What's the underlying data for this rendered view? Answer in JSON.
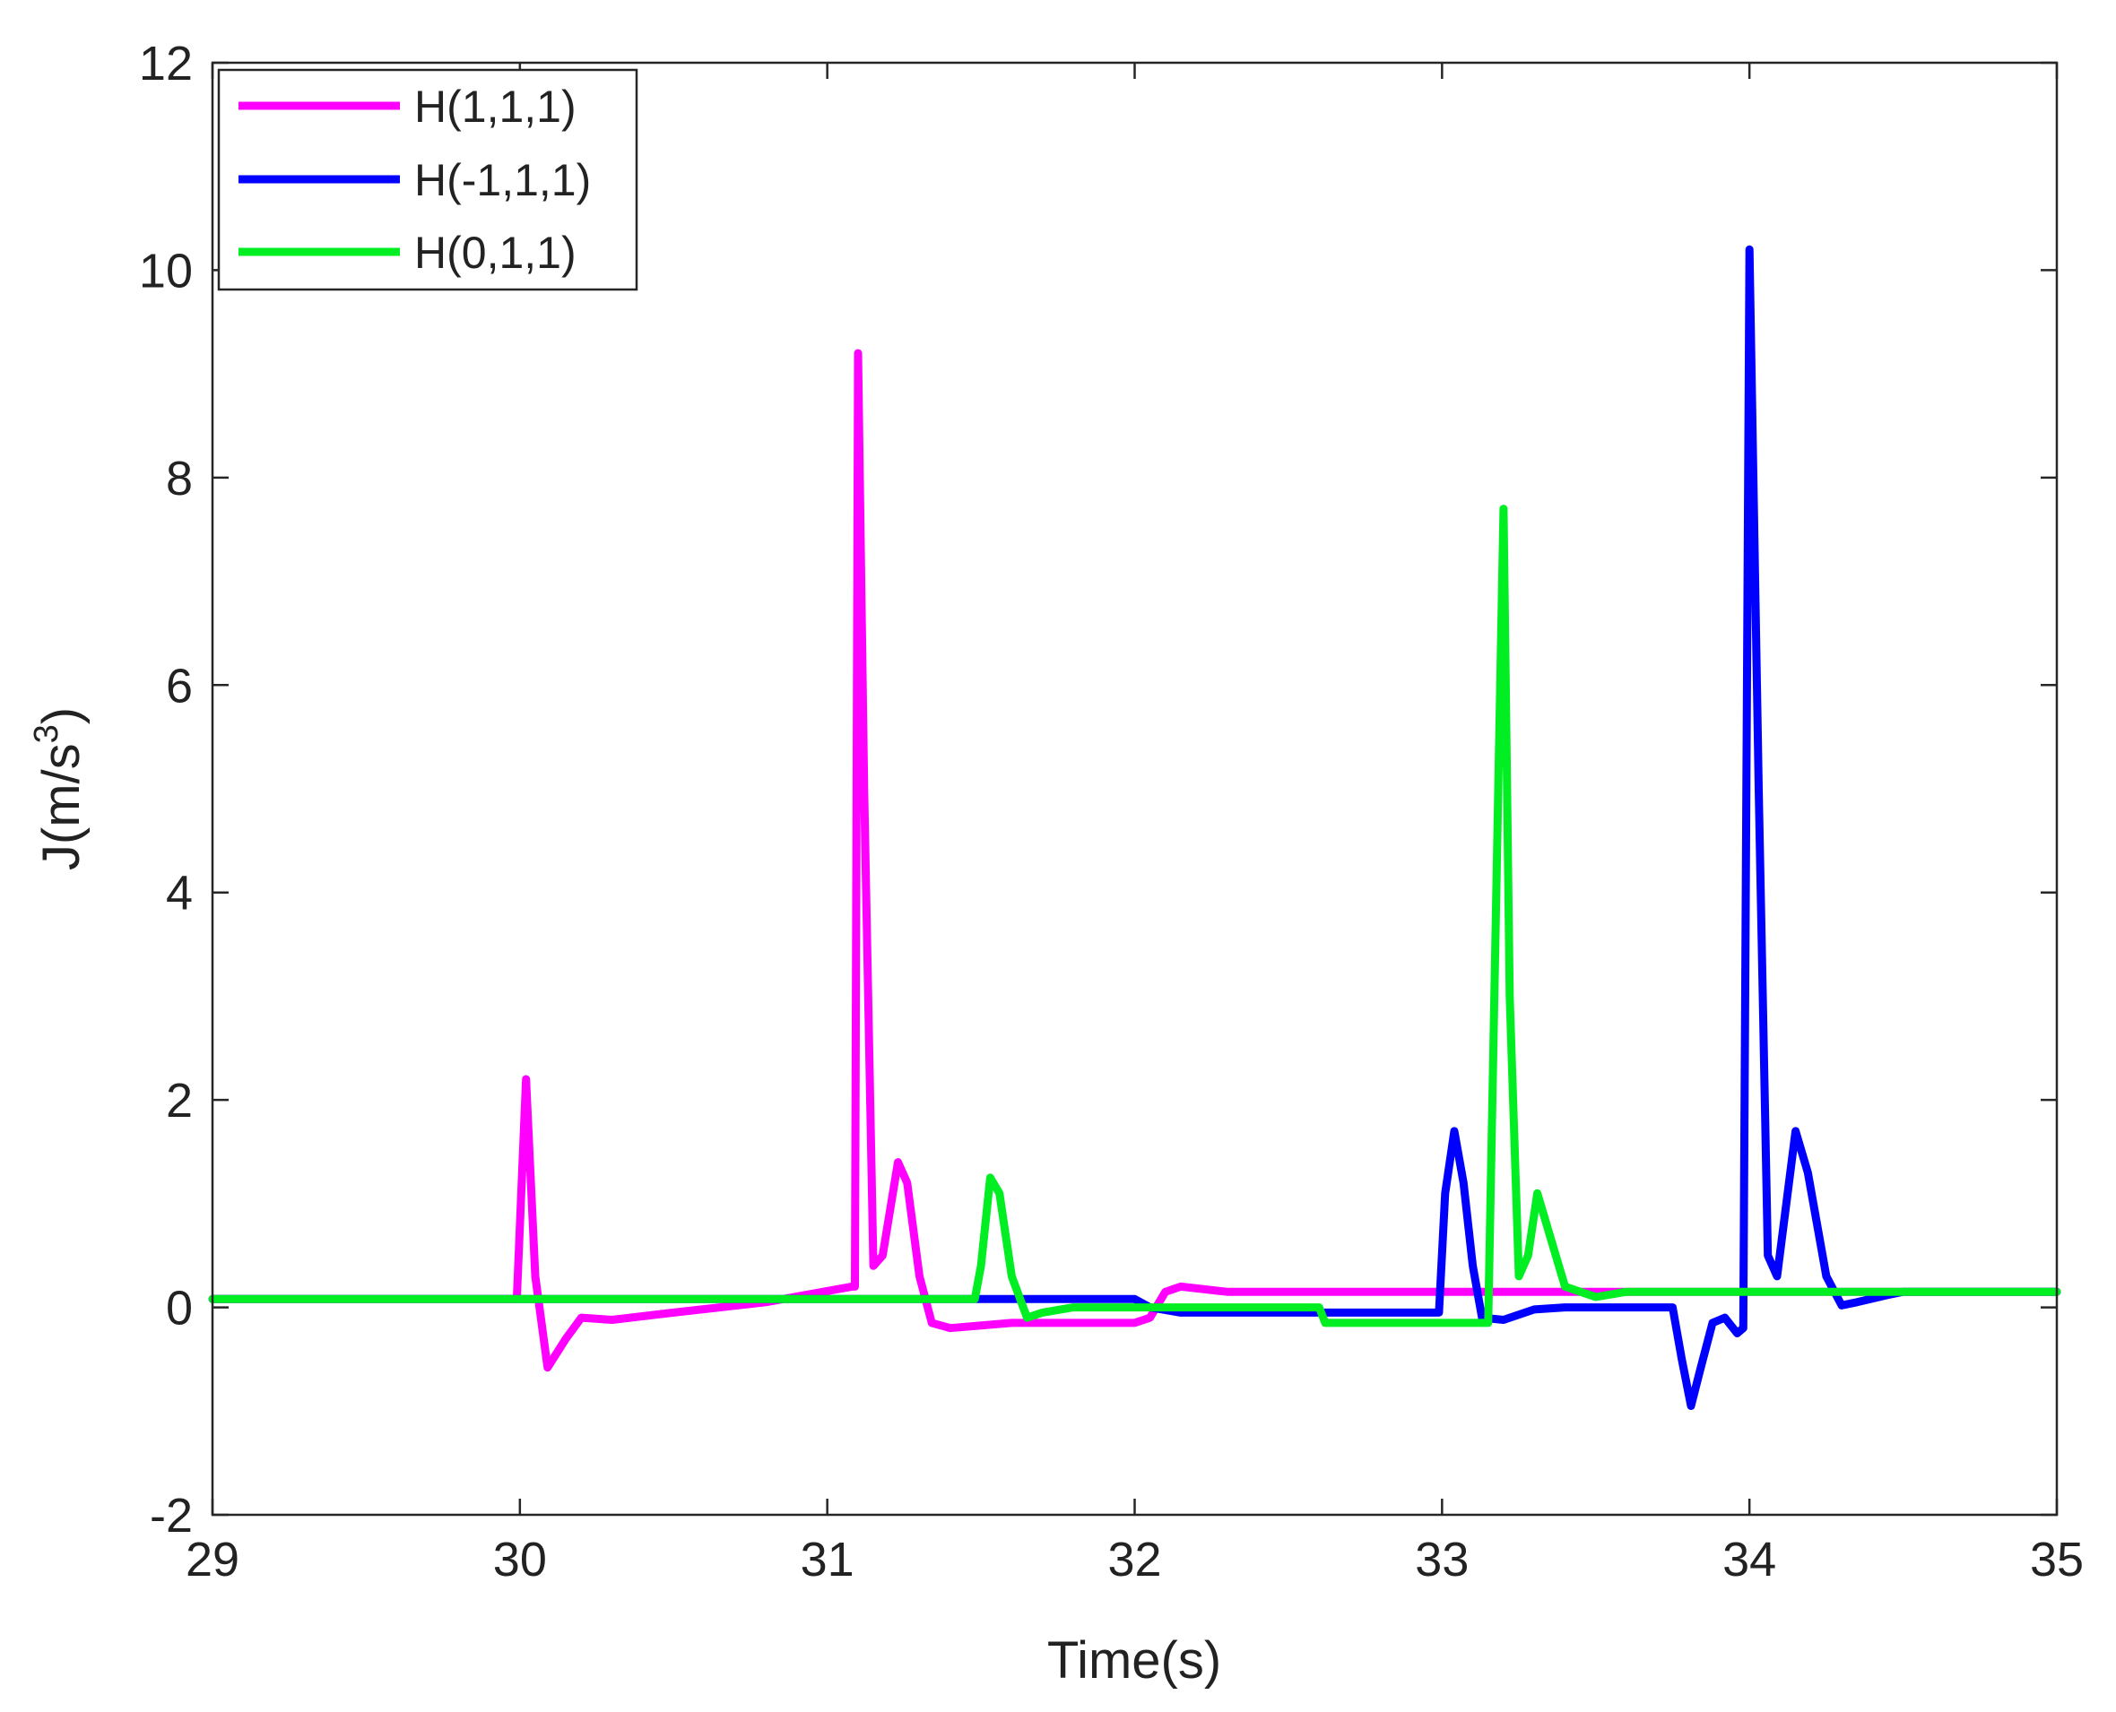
{
  "chart_data": {
    "type": "line",
    "xlabel": "Time(s)",
    "ylabel": "J(m/s^3)",
    "ylabel_parts": {
      "main": "J(m/s",
      "sup": "3",
      "close": ")"
    },
    "xlim": [
      29,
      35
    ],
    "ylim": [
      -2,
      12
    ],
    "xticks": [
      29,
      30,
      31,
      32,
      33,
      34,
      35
    ],
    "yticks": [
      -2,
      0,
      2,
      4,
      6,
      8,
      10,
      12
    ],
    "grid": false,
    "legend_position": "top-left",
    "series": [
      {
        "name": "H(1,1,1)",
        "color": "#ff00ff",
        "points": [
          [
            29.0,
            0.08
          ],
          [
            29.99,
            0.08
          ],
          [
            30.02,
            2.2
          ],
          [
            30.05,
            0.3
          ],
          [
            30.09,
            -0.58
          ],
          [
            30.15,
            -0.3
          ],
          [
            30.2,
            -0.1
          ],
          [
            30.3,
            -0.12
          ],
          [
            30.5,
            -0.05
          ],
          [
            30.8,
            0.05
          ],
          [
            31.08,
            0.2
          ],
          [
            31.09,
            0.2
          ],
          [
            31.1,
            9.2
          ],
          [
            31.12,
            5.0
          ],
          [
            31.15,
            0.4
          ],
          [
            31.18,
            0.5
          ],
          [
            31.23,
            1.4
          ],
          [
            31.26,
            1.2
          ],
          [
            31.3,
            0.3
          ],
          [
            31.34,
            -0.15
          ],
          [
            31.4,
            -0.2
          ],
          [
            31.6,
            -0.15
          ],
          [
            31.8,
            -0.15
          ],
          [
            32.0,
            -0.15
          ],
          [
            32.05,
            -0.1
          ],
          [
            32.1,
            0.15
          ],
          [
            32.15,
            0.2
          ],
          [
            32.3,
            0.15
          ],
          [
            32.8,
            0.15
          ],
          [
            33.5,
            0.15
          ],
          [
            34.0,
            0.15
          ],
          [
            35.0,
            0.15
          ]
        ]
      },
      {
        "name": "H(-1,1,1)",
        "color": "#0000ff",
        "points": [
          [
            29.0,
            0.08
          ],
          [
            31.5,
            0.08
          ],
          [
            32.0,
            0.08
          ],
          [
            32.05,
            0.0
          ],
          [
            32.15,
            -0.05
          ],
          [
            32.3,
            -0.05
          ],
          [
            32.6,
            -0.05
          ],
          [
            32.9,
            -0.05
          ],
          [
            32.99,
            -0.05
          ],
          [
            33.01,
            1.1
          ],
          [
            33.04,
            1.7
          ],
          [
            33.07,
            1.2
          ],
          [
            33.1,
            0.4
          ],
          [
            33.13,
            -0.1
          ],
          [
            33.2,
            -0.12
          ],
          [
            33.3,
            -0.02
          ],
          [
            33.4,
            0.0
          ],
          [
            33.6,
            0.0
          ],
          [
            33.75,
            0.0
          ],
          [
            33.78,
            -0.5
          ],
          [
            33.81,
            -0.95
          ],
          [
            33.84,
            -0.6
          ],
          [
            33.88,
            -0.15
          ],
          [
            33.92,
            -0.1
          ],
          [
            33.96,
            -0.25
          ],
          [
            33.98,
            -0.2
          ],
          [
            34.0,
            10.2
          ],
          [
            34.03,
            5.0
          ],
          [
            34.06,
            0.5
          ],
          [
            34.09,
            0.3
          ],
          [
            34.15,
            1.7
          ],
          [
            34.19,
            1.3
          ],
          [
            34.25,
            0.3
          ],
          [
            34.3,
            0.02
          ],
          [
            34.35,
            0.05
          ],
          [
            34.45,
            0.12
          ],
          [
            34.5,
            0.15
          ],
          [
            35.0,
            0.15
          ]
        ]
      },
      {
        "name": "H(0,1,1)",
        "color": "#00ee22",
        "points": [
          [
            29.0,
            0.08
          ],
          [
            31.48,
            0.08
          ],
          [
            31.5,
            0.4
          ],
          [
            31.53,
            1.25
          ],
          [
            31.56,
            1.1
          ],
          [
            31.6,
            0.3
          ],
          [
            31.65,
            -0.1
          ],
          [
            31.7,
            -0.05
          ],
          [
            31.8,
            0.0
          ],
          [
            32.0,
            0.0
          ],
          [
            32.3,
            0.0
          ],
          [
            32.6,
            0.0
          ],
          [
            32.62,
            -0.15
          ],
          [
            33.0,
            -0.15
          ],
          [
            33.15,
            -0.15
          ],
          [
            33.2,
            7.7
          ],
          [
            33.22,
            3.0
          ],
          [
            33.25,
            0.3
          ],
          [
            33.28,
            0.5
          ],
          [
            33.31,
            1.1
          ],
          [
            33.34,
            0.8
          ],
          [
            33.4,
            0.2
          ],
          [
            33.5,
            0.1
          ],
          [
            33.6,
            0.15
          ],
          [
            34.0,
            0.15
          ],
          [
            35.0,
            0.15
          ]
        ]
      }
    ]
  }
}
